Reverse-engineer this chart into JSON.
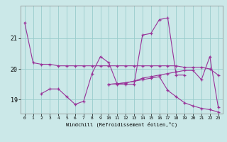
{
  "xlabel": "Windchill (Refroidissement éolien,°C)",
  "bg_color": "#cbe8e8",
  "line_color": "#993399",
  "grid_color": "#99cccc",
  "lines": [
    [
      21.5,
      20.2,
      20.15,
      20.15,
      20.1,
      20.1,
      20.1,
      20.1,
      20.1,
      20.1,
      20.1,
      20.1,
      20.1,
      20.1,
      20.1,
      20.1,
      20.1,
      20.1,
      20.1,
      20.05,
      20.05,
      20.05,
      20.0,
      19.8
    ],
    [
      null,
      null,
      19.2,
      19.35,
      19.35,
      19.1,
      18.85,
      18.95,
      19.85,
      20.4,
      20.2,
      19.5,
      19.5,
      19.5,
      21.1,
      21.15,
      21.6,
      21.65,
      19.8,
      19.8,
      null,
      null,
      null,
      null
    ],
    [
      null,
      null,
      null,
      null,
      null,
      null,
      null,
      null,
      null,
      null,
      19.5,
      19.52,
      19.55,
      19.6,
      19.7,
      19.75,
      19.8,
      19.85,
      19.9,
      19.95,
      19.95,
      19.65,
      20.4,
      18.75
    ],
    [
      null,
      null,
      null,
      null,
      null,
      null,
      null,
      null,
      null,
      null,
      19.5,
      19.52,
      19.55,
      19.6,
      19.65,
      19.7,
      19.75,
      19.3,
      19.1,
      18.9,
      18.8,
      18.72,
      18.68,
      18.6
    ]
  ],
  "xlim": [
    -0.5,
    23.5
  ],
  "ylim": [
    18.55,
    22.05
  ],
  "yticks": [
    19,
    20,
    21
  ],
  "xticks": [
    0,
    1,
    2,
    3,
    4,
    5,
    6,
    7,
    8,
    9,
    10,
    11,
    12,
    13,
    14,
    15,
    16,
    17,
    18,
    19,
    20,
    21,
    22,
    23
  ]
}
